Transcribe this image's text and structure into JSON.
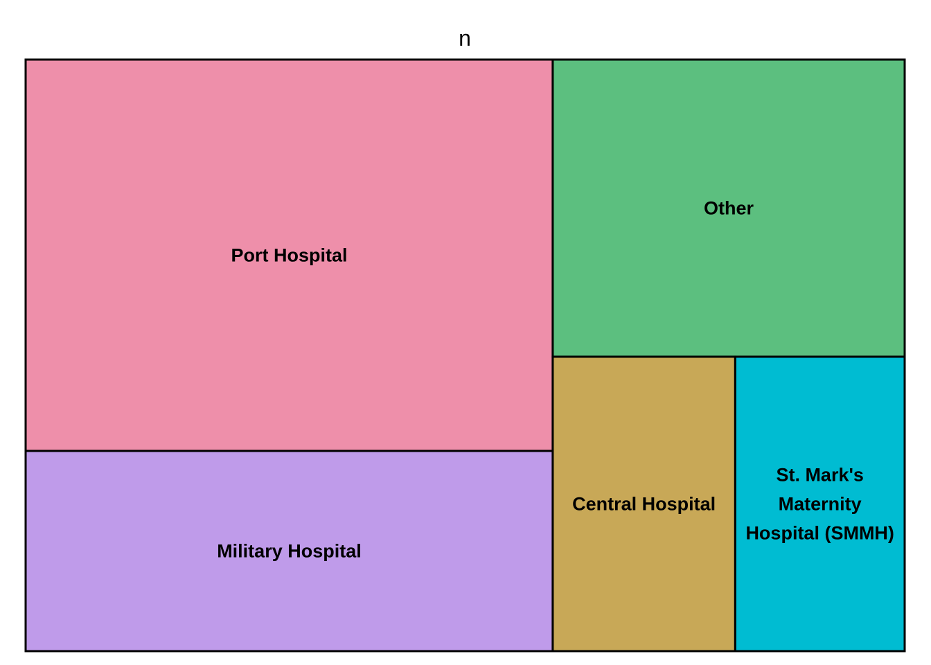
{
  "chart_data": {
    "type": "treemap",
    "title": "n",
    "tiles": [
      {
        "label": "Port Hospital",
        "value": 430,
        "color": "#EE8FAA"
      },
      {
        "label": "Military Hospital",
        "value": 220,
        "color": "#BF9BEA"
      },
      {
        "label": "Other",
        "value": 218,
        "color": "#5CBF7F"
      },
      {
        "label": "Central Hospital",
        "value": 112,
        "color": "#C8A857"
      },
      {
        "label": "St. Mark's Maternity Hospital (SMMH)",
        "label_lines": [
          "St. Mark's",
          "Maternity",
          "Hospital (SMMH)"
        ],
        "value": 104,
        "color": "#00BCD2"
      }
    ]
  }
}
